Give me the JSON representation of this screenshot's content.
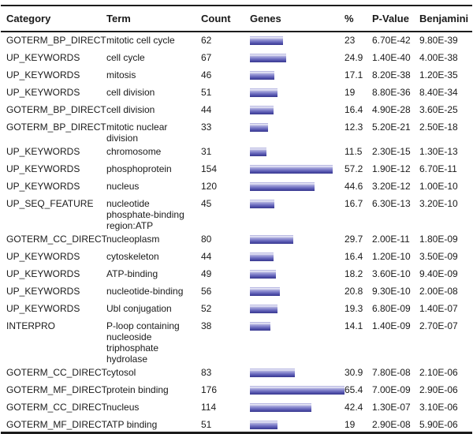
{
  "chart_data": {
    "type": "table",
    "columns": [
      "Category",
      "Term",
      "Count",
      "Genes",
      "%",
      "P-Value",
      "Benjamini"
    ],
    "bar_column": "Genes",
    "bar_values_represent": "percent",
    "bar_full_scale_percent": 65.4,
    "rows": [
      {
        "category": "GOTERM_BP_DIRECT",
        "term": "mitotic cell cycle",
        "count": 62,
        "percent": 23,
        "pvalue": "6.70E-42",
        "benjamini": "9.80E-39"
      },
      {
        "category": "UP_KEYWORDS",
        "term": "cell cycle",
        "count": 67,
        "percent": 24.9,
        "pvalue": "1.40E-40",
        "benjamini": "4.00E-38"
      },
      {
        "category": "UP_KEYWORDS",
        "term": "mitosis",
        "count": 46,
        "percent": 17.1,
        "pvalue": "8.20E-38",
        "benjamini": "1.20E-35"
      },
      {
        "category": "UP_KEYWORDS",
        "term": "cell division",
        "count": 51,
        "percent": 19,
        "pvalue": "8.80E-36",
        "benjamini": "8.40E-34"
      },
      {
        "category": "GOTERM_BP_DIRECT",
        "term": "cell division",
        "count": 44,
        "percent": 16.4,
        "pvalue": "4.90E-28",
        "benjamini": "3.60E-25"
      },
      {
        "category": "GOTERM_BP_DIRECT",
        "term": "mitotic nuclear division",
        "count": 33,
        "percent": 12.3,
        "pvalue": "5.20E-21",
        "benjamini": "2.50E-18"
      },
      {
        "category": "UP_KEYWORDS",
        "term": "chromosome",
        "count": 31,
        "percent": 11.5,
        "pvalue": "2.30E-15",
        "benjamini": "1.30E-13"
      },
      {
        "category": "UP_KEYWORDS",
        "term": "phosphoprotein",
        "count": 154,
        "percent": 57.2,
        "pvalue": "1.90E-12",
        "benjamini": "6.70E-11"
      },
      {
        "category": "UP_KEYWORDS",
        "term": "nucleus",
        "count": 120,
        "percent": 44.6,
        "pvalue": "3.20E-12",
        "benjamini": "1.00E-10"
      },
      {
        "category": "UP_SEQ_FEATURE",
        "term": "nucleotide phosphate-binding region:ATP",
        "count": 45,
        "percent": 16.7,
        "pvalue": "6.30E-13",
        "benjamini": "3.20E-10"
      },
      {
        "category": "GOTERM_CC_DIRECT",
        "term": "nucleoplasm",
        "count": 80,
        "percent": 29.7,
        "pvalue": "2.00E-11",
        "benjamini": "1.80E-09"
      },
      {
        "category": "UP_KEYWORDS",
        "term": "cytoskeleton",
        "count": 44,
        "percent": 16.4,
        "pvalue": "1.20E-10",
        "benjamini": "3.50E-09"
      },
      {
        "category": "UP_KEYWORDS",
        "term": "ATP-binding",
        "count": 49,
        "percent": 18.2,
        "pvalue": "3.60E-10",
        "benjamini": "9.40E-09"
      },
      {
        "category": "UP_KEYWORDS",
        "term": "nucleotide-binding",
        "count": 56,
        "percent": 20.8,
        "pvalue": "9.30E-10",
        "benjamini": "2.00E-08"
      },
      {
        "category": "UP_KEYWORDS",
        "term": "Ubl conjugation",
        "count": 52,
        "percent": 19.3,
        "pvalue": "6.80E-09",
        "benjamini": "1.40E-07"
      },
      {
        "category": "INTERPRO",
        "term": "P-loop containing nucleoside triphosphate hydrolase",
        "count": 38,
        "percent": 14.1,
        "pvalue": "1.40E-09",
        "benjamini": "2.70E-07"
      },
      {
        "category": "GOTERM_CC_DIRECT",
        "term": "cytosol",
        "count": 83,
        "percent": 30.9,
        "pvalue": "7.80E-08",
        "benjamini": "2.10E-06"
      },
      {
        "category": "GOTERM_MF_DIRECT",
        "term": "protein binding",
        "count": 176,
        "percent": 65.4,
        "pvalue": "7.00E-09",
        "benjamini": "2.90E-06"
      },
      {
        "category": "GOTERM_CC_DIRECT",
        "term": "nucleus",
        "count": 114,
        "percent": 42.4,
        "pvalue": "1.30E-07",
        "benjamini": "3.10E-06"
      },
      {
        "category": "GOTERM_MF_DIRECT",
        "term": "ATP binding",
        "count": 51,
        "percent": 19,
        "pvalue": "2.90E-08",
        "benjamini": "5.90E-06"
      }
    ]
  },
  "colors": {
    "background": "#ffffff",
    "text": "#1a1a1a",
    "rule": "#1c1c1c",
    "bar_gradient": [
      "#a2a2d8",
      "#f0f0fa",
      "#a8a8dc",
      "#7c7cc8",
      "#5252ac",
      "#38388f"
    ]
  }
}
